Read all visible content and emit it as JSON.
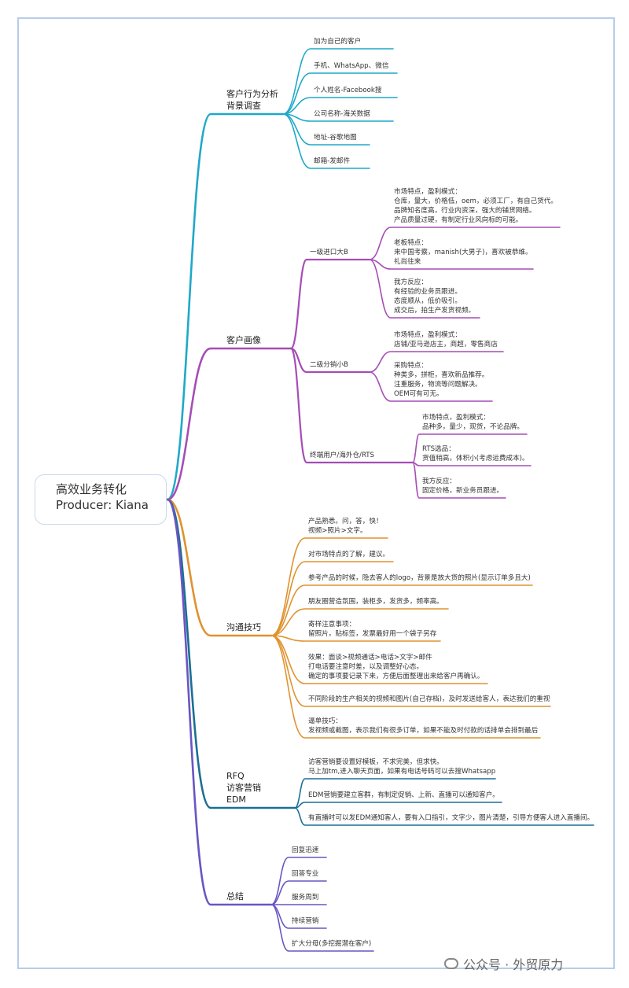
{
  "root": {
    "title": "高效业务转化",
    "producer": "Producer: Kiana"
  },
  "watermark": "公众号 · 外贸原力",
  "colors": {
    "frame": "#b7cde9",
    "branch1": "#1fa8c9",
    "branch2": "#a64db5",
    "branch3": "#e0922f",
    "branch4": "#1b6f93",
    "branch5": "#6a55c2"
  },
  "branches": [
    {
      "label": "客户行为分析\n背景调查",
      "children": [
        {
          "label": "加为自己的客户"
        },
        {
          "label": "手机、WhatsApp、微信"
        },
        {
          "label": "个人姓名-Facebook搜"
        },
        {
          "label": "公司名称-海关数据"
        },
        {
          "label": "地址-谷歌地图"
        },
        {
          "label": "邮箱-发邮件"
        }
      ]
    },
    {
      "label": "客户画像",
      "children": [
        {
          "label": "一级进口大B",
          "children": [
            {
              "label": "市场特点，盈利模式：\n仓库，量大，价格低，oem，必须工厂，有自己货代。\n品牌知名度高，行业内资深，强大的铺货网络。\n产品质量过硬，有制定行业风向标的可能。"
            },
            {
              "label": "老板特点：\n来中国考察，manish(大男子)，喜欢被恭维。\n礼尚往来"
            },
            {
              "label": "我方反应：\n有经验的业务员跟进。\n态度顺从，低价吸引。\n成交后，拍生产发货视频。"
            }
          ]
        },
        {
          "label": "二级分销小B",
          "children": [
            {
              "label": "市场特点，盈利模式：\n店铺/亚马逊店主，商超，零售商店"
            },
            {
              "label": "采购特点：\n种类多，拼柜，喜欢新品推荐。\n注重服务，物流等问题解决。\nOEM可有可无。"
            }
          ]
        },
        {
          "label": "终端用户/海外仓/RTS",
          "children": [
            {
              "label": "市场特点，盈利模式：\n品种多，量少，现货，不论品牌。"
            },
            {
              "label": "RTS选品：\n货值稍高，体积小(考虑运费成本)。"
            },
            {
              "label": "我方反应：\n固定价格，新业务员跟进。"
            }
          ]
        }
      ]
    },
    {
      "label": "沟通技巧",
      "children": [
        {
          "label": "产品熟悉。问，答，快！\n视频>照片>文字。"
        },
        {
          "label": "对市场特点的了解，建议。"
        },
        {
          "label": "参考产品的时候，隐去客人的logo，背景是放大货的照片(显示订单多且大)"
        },
        {
          "label": "朋友圈营造氛围，装柜多，发货多，频率高。"
        },
        {
          "label": "寄样注意事项：\n留照片，贴标签，发票最好用一个袋子另存"
        },
        {
          "label": "效果：面谈>视频通话>电话>文字>邮件\n打电话要注意时差，以及调整好心态。\n确定的事项要记录下来，方便后面整理出来给客户再确认。"
        },
        {
          "label": "不同阶段的生产相关的视频和图片(自己存档)，及时发送给客人，表达我们的重视"
        },
        {
          "label": "逼单技巧：\n发视频或截图，表示我们有很多订单，如果不能及时付款的话排单会排到最后"
        }
      ]
    },
    {
      "label": "RFQ\n访客营销\nEDM",
      "children": [
        {
          "label": "访客营销要设置好模板，不求完美，但求快。\n马上加tm,进入聊天页面，如果有电话号码可以去搜Whatsapp"
        },
        {
          "label": "EDM营销要建立客群，有制定促销、上新、直播可以通知客户。"
        },
        {
          "label": "有直播时可以发EDM通知客人，要有入口指引，文字少，图片清楚，引导方便客人进入直播间。"
        }
      ]
    },
    {
      "label": "总结",
      "children": [
        {
          "label": "回复迅速"
        },
        {
          "label": "回答专业"
        },
        {
          "label": "服务周到"
        },
        {
          "label": "持续营销"
        },
        {
          "label": "扩大分母(多挖掘潜在客户)"
        }
      ]
    }
  ]
}
